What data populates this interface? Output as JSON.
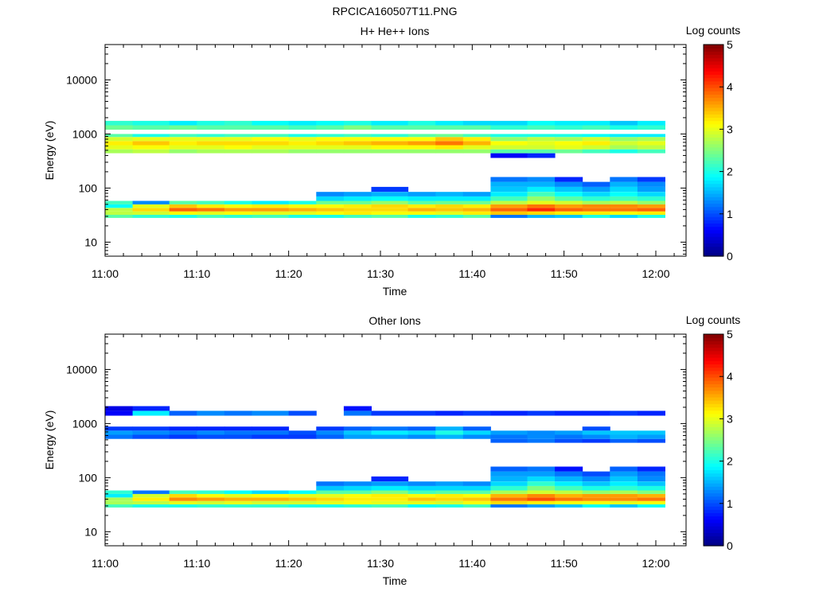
{
  "figure_title": "RPCICA160507T11.PNG",
  "chart_data": [
    {
      "type": "heatmap",
      "title": "H+ He++ Ions",
      "xlabel": "Time",
      "ylabel": "Energy (eV)",
      "x_ticks": [
        "11:00",
        "11:10",
        "11:20",
        "11:30",
        "11:40",
        "11:50",
        "12:00"
      ],
      "y_ticks": [
        "10",
        "100",
        "1000",
        "10000"
      ],
      "y_scale": "log",
      "ylim": [
        5.5,
        45000
      ],
      "colorbar_label": "Log counts",
      "colorbar_ticks": [
        "0",
        "1",
        "2",
        "3",
        "4",
        "5"
      ],
      "zlim": [
        0,
        5
      ],
      "colormap": "jet",
      "x_bins": [
        "11:00",
        "11:03",
        "11:07",
        "11:10",
        "11:13",
        "11:16",
        "11:20",
        "11:23",
        "11:26",
        "11:29",
        "11:33",
        "11:36",
        "11:39",
        "11:42",
        "11:46",
        "11:49",
        "11:52",
        "11:55",
        "11:58",
        "12:01"
      ],
      "bands": [
        {
          "lo": 28,
          "hi": 32,
          "vals": [
            2.3,
            2.1,
            2.0,
            2.2,
            2.1,
            2.2,
            2.0,
            2.0,
            2.2,
            2.3,
            2.0,
            2.1,
            2.3,
            1.2,
            1.5,
            1.6,
            2.0,
            1.7,
            2.0
          ]
        },
        {
          "lo": 32,
          "hi": 37,
          "vals": [
            2.8,
            2.9,
            3.1,
            3.0,
            3.1,
            3.0,
            3.0,
            3.1,
            3.2,
            3.1,
            3.1,
            3.0,
            3.2,
            3.4,
            3.3,
            3.2,
            3.2,
            3.1,
            3.2
          ]
        },
        {
          "lo": 37,
          "hi": 43,
          "vals": [
            2.8,
            3.3,
            3.9,
            3.8,
            3.6,
            3.6,
            3.5,
            3.4,
            3.3,
            3.3,
            3.5,
            3.4,
            3.5,
            3.9,
            4.2,
            3.9,
            3.8,
            3.8,
            3.9
          ]
        },
        {
          "lo": 43,
          "hi": 50,
          "vals": [
            1.9,
            3.0,
            3.4,
            3.2,
            3.1,
            3.2,
            3.1,
            3.1,
            3.2,
            3.3,
            3.2,
            3.3,
            3.2,
            3.6,
            3.8,
            3.6,
            3.7,
            3.7,
            3.6
          ]
        },
        {
          "lo": 50,
          "hi": 58,
          "vals": [
            2.2,
            1.3,
            2.3,
            2.2,
            2.0,
            1.8,
            2.0,
            2.4,
            2.4,
            2.6,
            2.3,
            2.4,
            2.4,
            2.8,
            3.0,
            2.9,
            2.7,
            2.8,
            2.6
          ]
        },
        {
          "lo": 58,
          "hi": 70,
          "vals": [
            0,
            0,
            0,
            0,
            0,
            0,
            0,
            1.7,
            1.8,
            1.9,
            1.8,
            1.8,
            1.8,
            2.2,
            2.6,
            2.3,
            2.1,
            2.2,
            2.1
          ]
        },
        {
          "lo": 70,
          "hi": 85,
          "vals": [
            0,
            0,
            0,
            0,
            0,
            0,
            0,
            1.3,
            1.4,
            1.5,
            1.4,
            1.5,
            1.4,
            1.8,
            2.2,
            1.9,
            1.7,
            1.9,
            1.7
          ]
        },
        {
          "lo": 85,
          "hi": 105,
          "vals": [
            0,
            0,
            0,
            0,
            0,
            0,
            0,
            0,
            0,
            0.9,
            0,
            0,
            0,
            1.6,
            1.8,
            1.6,
            1.4,
            1.7,
            1.4
          ]
        },
        {
          "lo": 105,
          "hi": 130,
          "vals": [
            0,
            0,
            0,
            0,
            0,
            0,
            0,
            0,
            0,
            0,
            0,
            0,
            0,
            1.5,
            1.5,
            1.3,
            1.1,
            1.5,
            1.3
          ]
        },
        {
          "lo": 130,
          "hi": 160,
          "vals": [
            0,
            0,
            0,
            0,
            0,
            0,
            0,
            0,
            0,
            0,
            0,
            0,
            0,
            1.2,
            1.3,
            0.8,
            0,
            1.2,
            0.9
          ]
        },
        {
          "lo": 360,
          "hi": 440,
          "vals": [
            0,
            0,
            0,
            0,
            0,
            0,
            0,
            0,
            0,
            0,
            0,
            0,
            0,
            0.6,
            0.8,
            0,
            0,
            0,
            0
          ]
        },
        {
          "lo": 440,
          "hi": 520,
          "vals": [
            2.7,
            2.8,
            2.6,
            2.7,
            2.7,
            2.7,
            2.6,
            2.6,
            2.6,
            2.6,
            2.6,
            2.6,
            2.6,
            2.3,
            2.3,
            2.4,
            2.2,
            2.0,
            2.2
          ]
        },
        {
          "lo": 520,
          "hi": 620,
          "vals": [
            3.0,
            3.1,
            3.0,
            3.0,
            3.1,
            3.0,
            3.0,
            3.0,
            3.0,
            3.1,
            3.1,
            3.2,
            3.0,
            2.9,
            2.9,
            3.0,
            2.9,
            2.7,
            2.8
          ]
        },
        {
          "lo": 620,
          "hi": 740,
          "vals": [
            3.2,
            3.4,
            3.2,
            3.3,
            3.3,
            3.3,
            3.2,
            3.3,
            3.4,
            3.5,
            3.6,
            3.8,
            3.5,
            3.1,
            3.0,
            3.1,
            3.2,
            2.9,
            3.0
          ]
        },
        {
          "lo": 740,
          "hi": 880,
          "vals": [
            2.9,
            3.0,
            3.0,
            3.0,
            3.0,
            3.1,
            3.0,
            3.1,
            3.1,
            3.1,
            3.1,
            3.4,
            3.2,
            2.6,
            2.8,
            2.7,
            2.9,
            2.6,
            2.7
          ]
        },
        {
          "lo": 880,
          "hi": 1000,
          "vals": [
            2.3,
            2.0,
            2.2,
            2.1,
            2.2,
            2.2,
            2.0,
            2.1,
            2.2,
            2.1,
            2.3,
            2.4,
            2.2,
            2.0,
            2.0,
            2.0,
            1.9,
            1.8,
            1.8
          ]
        },
        {
          "lo": 1200,
          "hi": 1450,
          "vals": [
            2.4,
            2.3,
            2.4,
            2.3,
            2.3,
            2.3,
            2.2,
            2.3,
            2.5,
            2.3,
            2.3,
            2.3,
            2.3,
            2.1,
            2.2,
            2.1,
            2.2,
            2.0,
            2.1
          ]
        },
        {
          "lo": 1450,
          "hi": 1750,
          "vals": [
            2.1,
            2.0,
            1.8,
            2.0,
            2.1,
            1.9,
            1.8,
            1.9,
            2.0,
            1.8,
            2.0,
            1.8,
            1.7,
            1.7,
            1.9,
            1.8,
            1.8,
            1.6,
            1.8
          ]
        }
      ]
    },
    {
      "type": "heatmap",
      "title": "Other Ions",
      "xlabel": "Time",
      "ylabel": "Energy (eV)",
      "x_ticks": [
        "11:00",
        "11:10",
        "11:20",
        "11:30",
        "11:40",
        "11:50",
        "12:00"
      ],
      "y_ticks": [
        "10",
        "100",
        "1000",
        "10000"
      ],
      "y_scale": "log",
      "ylim": [
        5.5,
        45000
      ],
      "colorbar_label": "Log counts",
      "colorbar_ticks": [
        "0",
        "1",
        "2",
        "3",
        "4",
        "5"
      ],
      "zlim": [
        0,
        5
      ],
      "colormap": "jet",
      "x_bins": [
        "11:00",
        "11:03",
        "11:07",
        "11:10",
        "11:13",
        "11:16",
        "11:20",
        "11:23",
        "11:26",
        "11:29",
        "11:33",
        "11:36",
        "11:39",
        "11:42",
        "11:46",
        "11:49",
        "11:52",
        "11:55",
        "11:58",
        "12:01"
      ],
      "bands": [
        {
          "lo": 28,
          "hi": 32,
          "vals": [
            2.2,
            2.0,
            2.0,
            2.1,
            2.1,
            2.1,
            2.0,
            2.0,
            2.1,
            2.2,
            1.9,
            2.0,
            2.2,
            1.2,
            1.4,
            1.6,
            1.9,
            1.6,
            1.9
          ]
        },
        {
          "lo": 32,
          "hi": 37,
          "vals": [
            2.7,
            2.8,
            3.0,
            2.9,
            3.0,
            2.9,
            2.9,
            3.0,
            3.1,
            3.0,
            3.0,
            2.9,
            3.1,
            3.3,
            3.2,
            3.1,
            3.1,
            3.0,
            3.1
          ]
        },
        {
          "lo": 37,
          "hi": 43,
          "vals": [
            2.7,
            3.2,
            3.7,
            3.6,
            3.5,
            3.5,
            3.4,
            3.3,
            3.2,
            3.2,
            3.4,
            3.3,
            3.4,
            3.8,
            4.0,
            3.8,
            3.7,
            3.7,
            3.8
          ]
        },
        {
          "lo": 43,
          "hi": 50,
          "vals": [
            1.8,
            2.9,
            3.3,
            3.1,
            3.0,
            3.1,
            3.0,
            3.0,
            3.1,
            3.2,
            3.1,
            3.2,
            3.1,
            3.5,
            3.7,
            3.5,
            3.6,
            3.6,
            3.5
          ]
        },
        {
          "lo": 50,
          "hi": 58,
          "vals": [
            2.1,
            1.2,
            2.2,
            2.1,
            1.9,
            1.7,
            1.9,
            2.3,
            2.3,
            2.5,
            2.2,
            2.3,
            2.3,
            2.7,
            2.9,
            2.8,
            2.6,
            2.7,
            2.5
          ]
        },
        {
          "lo": 58,
          "hi": 70,
          "vals": [
            0,
            0,
            0,
            0,
            0,
            0,
            0,
            1.6,
            1.7,
            1.8,
            1.7,
            1.7,
            1.7,
            2.1,
            2.5,
            2.2,
            2.0,
            2.1,
            2.0
          ]
        },
        {
          "lo": 70,
          "hi": 85,
          "vals": [
            0,
            0,
            0,
            0,
            0,
            0,
            0,
            1.2,
            1.3,
            1.4,
            1.3,
            1.4,
            1.3,
            1.7,
            2.1,
            1.8,
            1.6,
            1.8,
            1.6
          ]
        },
        {
          "lo": 85,
          "hi": 105,
          "vals": [
            0,
            0,
            0,
            0,
            0,
            0,
            0,
            0,
            0,
            0.8,
            0,
            0,
            0,
            1.5,
            1.7,
            1.5,
            1.3,
            1.6,
            1.3
          ]
        },
        {
          "lo": 105,
          "hi": 130,
          "vals": [
            0,
            0,
            0,
            0,
            0,
            0,
            0,
            0,
            0,
            0,
            0,
            0,
            0,
            1.4,
            1.4,
            1.2,
            1.0,
            1.4,
            1.2
          ]
        },
        {
          "lo": 130,
          "hi": 160,
          "vals": [
            0,
            0,
            0,
            0,
            0,
            0,
            0,
            0,
            0,
            0,
            0,
            0,
            0,
            1.1,
            1.2,
            0.7,
            0,
            1.1,
            0.8
          ]
        },
        {
          "lo": 440,
          "hi": 520,
          "vals": [
            0,
            0,
            0,
            0,
            0,
            0,
            0,
            0,
            0,
            0,
            0,
            0,
            0,
            1.1,
            1.2,
            1.0,
            0.9,
            1.1,
            1.0
          ]
        },
        {
          "lo": 520,
          "hi": 620,
          "vals": [
            1.2,
            1.0,
            0.9,
            1.0,
            1.0,
            0.9,
            0.9,
            1.1,
            1.4,
            1.4,
            1.3,
            1.5,
            1.3,
            1.2,
            1.3,
            1.2,
            1.3,
            1.5,
            1.4
          ]
        },
        {
          "lo": 620,
          "hi": 740,
          "vals": [
            1.4,
            1.3,
            1.2,
            1.3,
            1.2,
            1.2,
            1.0,
            1.3,
            1.6,
            1.8,
            1.7,
            2.0,
            1.7,
            1.4,
            1.3,
            1.4,
            1.6,
            1.6,
            1.6
          ]
        },
        {
          "lo": 740,
          "hi": 880,
          "vals": [
            0.9,
            0.9,
            0.8,
            0.8,
            0.8,
            0.8,
            0.0,
            0.9,
            1.1,
            1.2,
            1.1,
            1.5,
            1.1,
            0,
            0,
            0,
            1.0,
            0,
            0
          ]
        },
        {
          "lo": 1400,
          "hi": 1720,
          "vals": [
            0.6,
            1.8,
            1.1,
            1.3,
            1.2,
            1.3,
            1.0,
            0,
            1.2,
            0.9,
            0.9,
            0.8,
            0.9,
            0.8,
            0.9,
            0.8,
            0.8,
            0.9,
            0.8
          ]
        },
        {
          "lo": 1720,
          "hi": 2100,
          "vals": [
            0.5,
            0.8,
            0,
            0,
            0,
            0,
            0,
            0,
            0.7,
            0,
            0,
            0,
            0,
            0,
            0,
            0,
            0,
            0,
            0
          ]
        }
      ]
    }
  ]
}
